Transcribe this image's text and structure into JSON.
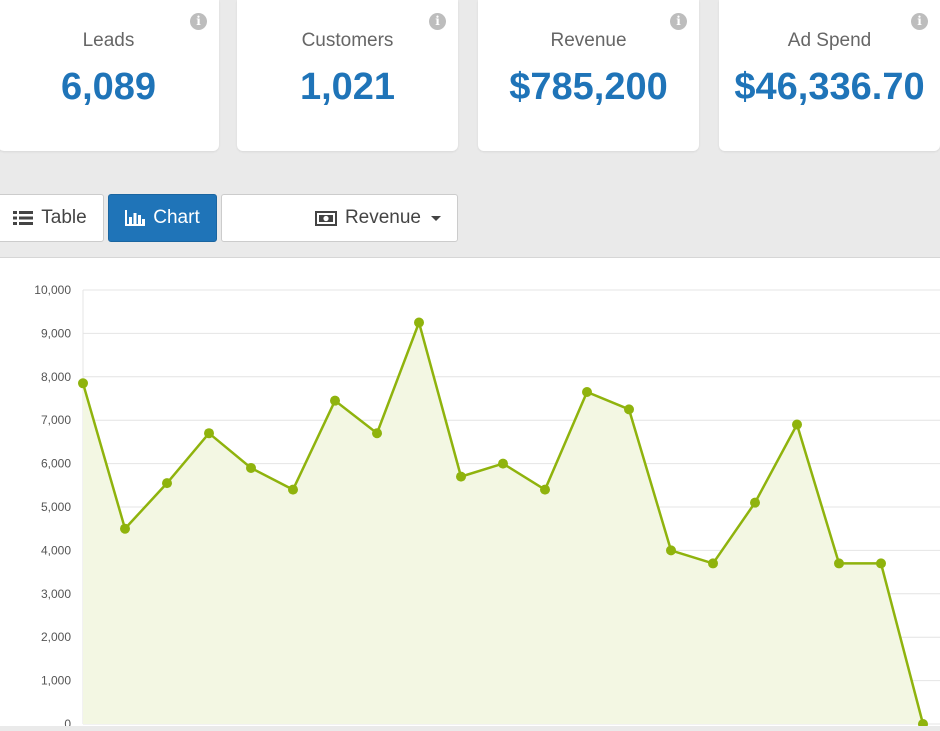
{
  "stats": [
    {
      "label": "Leads",
      "value": "6,089"
    },
    {
      "label": "Customers",
      "value": "1,021"
    },
    {
      "label": "Revenue",
      "value": "$785,200"
    },
    {
      "label": "Ad Spend",
      "value": "$46,336.70"
    }
  ],
  "info_icon": "i",
  "view_toggle": {
    "table_label": "Table",
    "chart_label": "Chart",
    "table_icon": "list-icon",
    "chart_icon": "bar-chart-icon"
  },
  "metric_select": {
    "label": "Revenue",
    "icon": "money-icon"
  },
  "colors": {
    "accent": "#1f74b8",
    "series": "#8fb30d",
    "series_fill": "#f3f7e3"
  },
  "chart_data": {
    "type": "area",
    "y_ticks": [
      "10,000",
      "9,000",
      "8,000",
      "7,000",
      "6,000",
      "5,000",
      "4,000",
      "3,000",
      "2,000",
      "1,000",
      "0"
    ],
    "ylim": [
      0,
      10000
    ],
    "grid": true,
    "series": [
      {
        "values": [
          7850,
          4500,
          5550,
          6700,
          5900,
          5400,
          7450,
          6700,
          9250,
          5700,
          6000,
          5400,
          7650,
          7250,
          4000,
          3700,
          5100,
          6900,
          3700,
          3700,
          0
        ]
      }
    ]
  }
}
